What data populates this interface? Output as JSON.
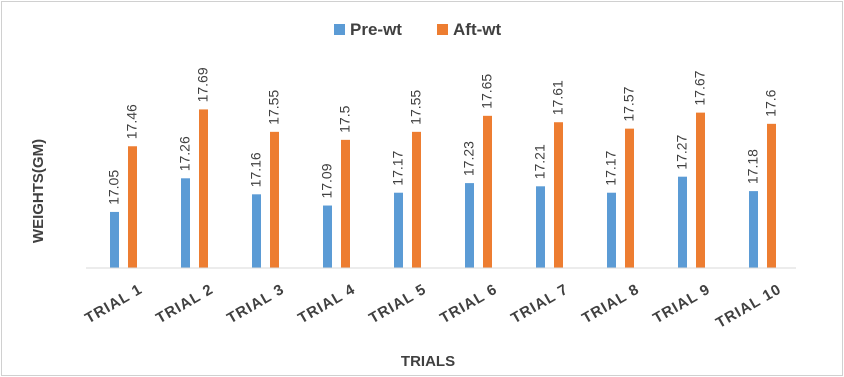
{
  "chart_data": {
    "type": "bar",
    "title": "",
    "xlabel": "TRIALS",
    "ylabel": "WEIGHTS(GM)",
    "categories": [
      "TRIAL 1",
      "TRIAL 2",
      "TRIAL 3",
      "TRIAL 4",
      "TRIAL 5",
      "TRIAL 6",
      "TRIAL 7",
      "TRIAL 8",
      "TRIAL 9",
      "TRIAL 10"
    ],
    "series": [
      {
        "name": "Pre-wt",
        "color": "#5b9bd5",
        "values": [
          17.05,
          17.26,
          17.16,
          17.09,
          17.17,
          17.23,
          17.21,
          17.17,
          17.27,
          17.18
        ]
      },
      {
        "name": "Aft-wt",
        "color": "#ed7d31",
        "values": [
          17.46,
          17.69,
          17.55,
          17.5,
          17.55,
          17.65,
          17.61,
          17.57,
          17.67,
          17.6
        ]
      }
    ],
    "ylim": [
      16.7,
      17.78
    ],
    "grid": false,
    "legend": "top-center",
    "data_labels": true
  }
}
